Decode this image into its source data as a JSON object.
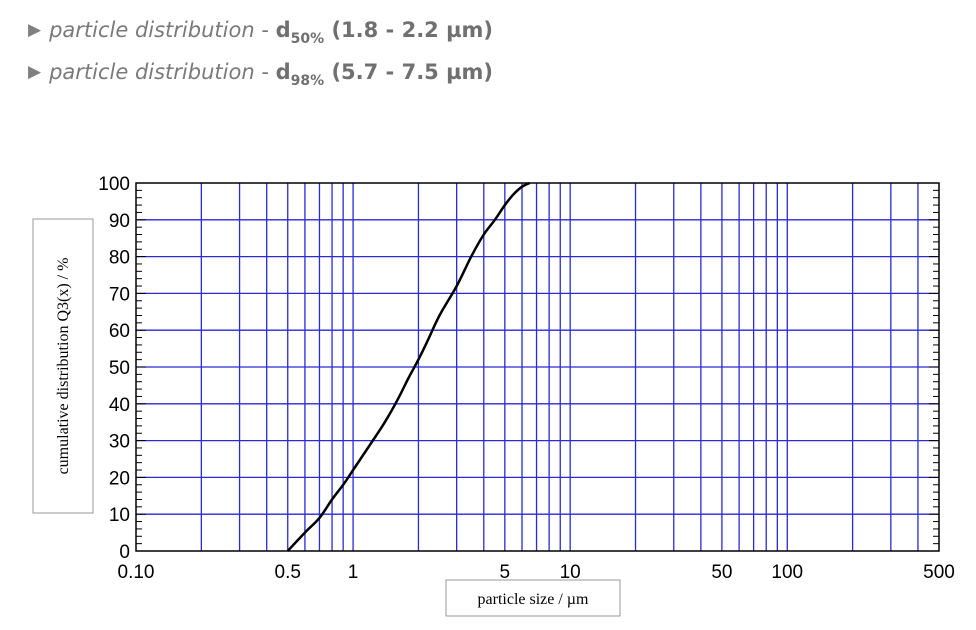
{
  "specs": [
    {
      "arrow": "▶",
      "name": "particle distribution",
      "separator": " - ",
      "symbol": "d",
      "subscript": "50%",
      "range": " (1.8 - 2.2 µm)"
    },
    {
      "arrow": "▶",
      "name": "particle distribution",
      "separator": " - ",
      "symbol": "d",
      "subscript": "98%",
      "range": " (5.7 - 7.5 µm)"
    }
  ],
  "chart_data": {
    "type": "line",
    "xlabel": "particle size /  µm",
    "ylabel": "cumulative distribution Q3(x) / %",
    "xscale": "log",
    "xlim": [
      0.1,
      500
    ],
    "ylim": [
      0,
      100
    ],
    "x_tick_labels": [
      {
        "value": 0.1,
        "label": "0.10"
      },
      {
        "value": 0.5,
        "label": "0.5"
      },
      {
        "value": 1,
        "label": "1"
      },
      {
        "value": 5,
        "label": "5"
      },
      {
        "value": 10,
        "label": "10"
      },
      {
        "value": 50,
        "label": "50"
      },
      {
        "value": 100,
        "label": "100"
      },
      {
        "value": 500,
        "label": "500"
      }
    ],
    "y_ticks": [
      0,
      10,
      20,
      30,
      40,
      50,
      60,
      70,
      80,
      90,
      100
    ],
    "grid": true,
    "grid_color": "#2a2ad8",
    "series": [
      {
        "color": "#000000",
        "x": [
          0.5,
          0.6,
          0.7,
          0.8,
          0.9,
          1.0,
          1.2,
          1.4,
          1.6,
          1.8,
          2.0,
          2.2,
          2.5,
          3.0,
          3.5,
          4.0,
          4.5,
          5.0,
          5.5,
          6.0,
          6.5
        ],
        "y": [
          0,
          5,
          9,
          14,
          18,
          22,
          29,
          35,
          41,
          47,
          52,
          57,
          64,
          72,
          80,
          86,
          90,
          94,
          97,
          99,
          100
        ]
      }
    ]
  }
}
